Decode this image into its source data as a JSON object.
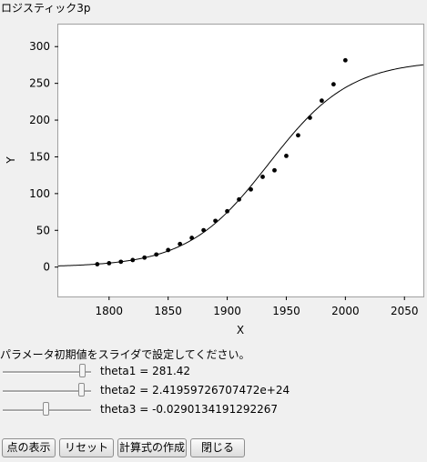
{
  "panel": {
    "title": "ロジスティック3p"
  },
  "chart_data": {
    "type": "scatter",
    "xlabel": "X",
    "ylabel": "Y",
    "xlim": [
      1757,
      2066
    ],
    "ylim": [
      -40,
      330
    ],
    "xticks": [
      1800,
      1850,
      1900,
      1950,
      2000,
      2050
    ],
    "yticks": [
      0,
      50,
      100,
      150,
      200,
      250,
      300
    ],
    "points": [
      {
        "x": 1790,
        "y": 3.9
      },
      {
        "x": 1800,
        "y": 5.3
      },
      {
        "x": 1810,
        "y": 7.2
      },
      {
        "x": 1820,
        "y": 9.6
      },
      {
        "x": 1830,
        "y": 12.9
      },
      {
        "x": 1840,
        "y": 17.1
      },
      {
        "x": 1850,
        "y": 23.2
      },
      {
        "x": 1860,
        "y": 31.4
      },
      {
        "x": 1870,
        "y": 39.8
      },
      {
        "x": 1880,
        "y": 50.2
      },
      {
        "x": 1890,
        "y": 62.9
      },
      {
        "x": 1900,
        "y": 76.0
      },
      {
        "x": 1910,
        "y": 92.0
      },
      {
        "x": 1920,
        "y": 105.7
      },
      {
        "x": 1930,
        "y": 122.8
      },
      {
        "x": 1940,
        "y": 131.7
      },
      {
        "x": 1950,
        "y": 151.3
      },
      {
        "x": 1960,
        "y": 179.3
      },
      {
        "x": 1970,
        "y": 203.2
      },
      {
        "x": 1980,
        "y": 226.5
      },
      {
        "x": 1990,
        "y": 248.7
      },
      {
        "x": 2000,
        "y": 281.4
      }
    ],
    "curve": {
      "model": "logistic3p",
      "theta1": 281.42,
      "theta2": 2.41959726707472e+24,
      "theta3": -0.0290134191292267
    }
  },
  "instruction": "パラメータ初期値をスライダで設定してください。",
  "sliders": [
    {
      "label": "theta1 = 281.42",
      "level": 0.93
    },
    {
      "label": "theta2 = 2.41959726707472e+24",
      "level": 0.92
    },
    {
      "label": "theta3 = -0.0290134191292267",
      "level": 0.49
    }
  ],
  "buttons": {
    "show_points": "点の表示",
    "reset": "リセット",
    "create_formula": "計算式の作成",
    "close": "閉じる"
  }
}
